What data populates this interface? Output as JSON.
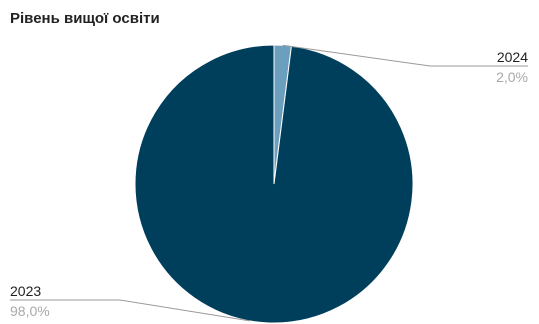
{
  "chart_data": {
    "type": "pie",
    "title": "Рівень вищої освіти",
    "slices": [
      {
        "label": "2024",
        "value": 2.0,
        "percent_label": "2,0%",
        "color": "#6c9fbe"
      },
      {
        "label": "2023",
        "value": 98.0,
        "percent_label": "98,0%",
        "color": "#003f5c"
      }
    ],
    "legend": "none",
    "labels": "outside-with-leader-lines"
  }
}
